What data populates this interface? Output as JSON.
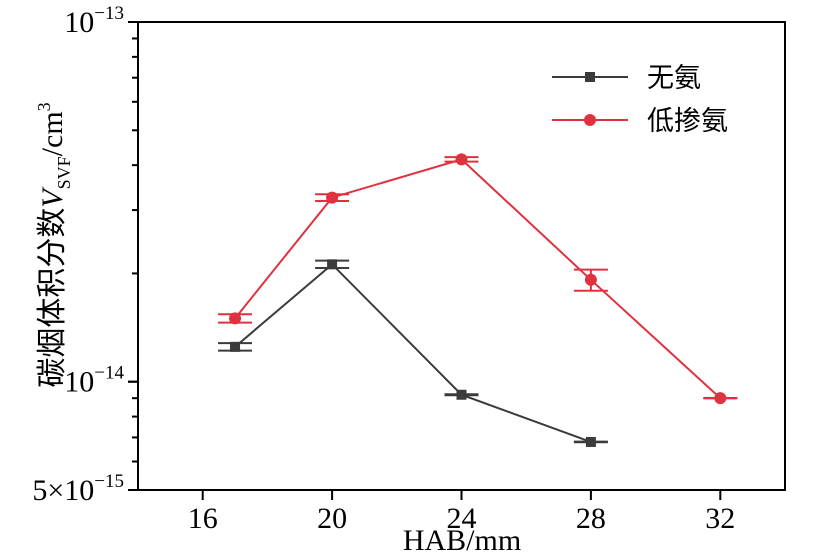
{
  "chart_data": {
    "type": "line",
    "xlabel": "HAB/mm",
    "ylabel": {
      "prefix": "碳烟体积分数",
      "var": "V",
      "sub": "SVF",
      "unit": "/cm",
      "sup": "3"
    },
    "xlim": [
      14,
      34
    ],
    "xticks": [
      16,
      20,
      24,
      28,
      32
    ],
    "ylim": [
      5e-15,
      1e-13
    ],
    "yscale": "log",
    "yticks": [
      {
        "value": 5e-15,
        "base": "5×10",
        "exp": "−15"
      },
      {
        "value": 1e-14,
        "base": "10",
        "exp": "−14"
      },
      {
        "value": 1e-13,
        "base": "10",
        "exp": "−13"
      }
    ],
    "legend_position": "top-right",
    "series": [
      {
        "name": "无氨",
        "color": "#3b3b3b",
        "marker": "square",
        "x": [
          17,
          20,
          24,
          28
        ],
        "y": [
          1.25e-14,
          2.12e-14,
          9.2e-15,
          6.8e-15
        ],
        "err": [
          3e-16,
          5e-16,
          3e-17,
          1.5e-17
        ]
      },
      {
        "name": "低掺氨",
        "color": "#e0313e",
        "marker": "circle",
        "x": [
          17,
          20,
          24,
          28,
          32
        ],
        "y": [
          1.5e-14,
          3.25e-14,
          4.15e-14,
          1.92e-14,
          9e-15
        ],
        "err": [
          4e-16,
          7e-16,
          6e-16,
          1.3e-15,
          1e-17
        ]
      }
    ]
  }
}
